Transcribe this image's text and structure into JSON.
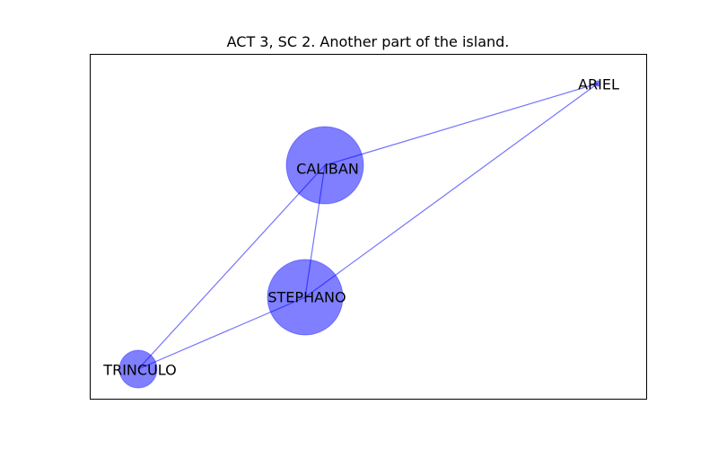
{
  "title": "ACT 3, SC 2. Another part of the island.",
  "colors": {
    "node": "#0000ff",
    "edge": "#0000ff",
    "frame": "#000000"
  },
  "nodes": [
    {
      "id": "CALIBAN",
      "label": "CALIBAN"
    },
    {
      "id": "ARIEL",
      "label": "ARIEL"
    },
    {
      "id": "STEPHANO",
      "label": "STEPHANO"
    },
    {
      "id": "TRINCULO",
      "label": "TRINCULO"
    }
  ],
  "edges": [
    {
      "source": "CALIBAN",
      "target": "ARIEL"
    },
    {
      "source": "CALIBAN",
      "target": "STEPHANO"
    },
    {
      "source": "CALIBAN",
      "target": "TRINCULO"
    },
    {
      "source": "ARIEL",
      "target": "STEPHANO"
    },
    {
      "source": "STEPHANO",
      "target": "TRINCULO"
    }
  ]
}
